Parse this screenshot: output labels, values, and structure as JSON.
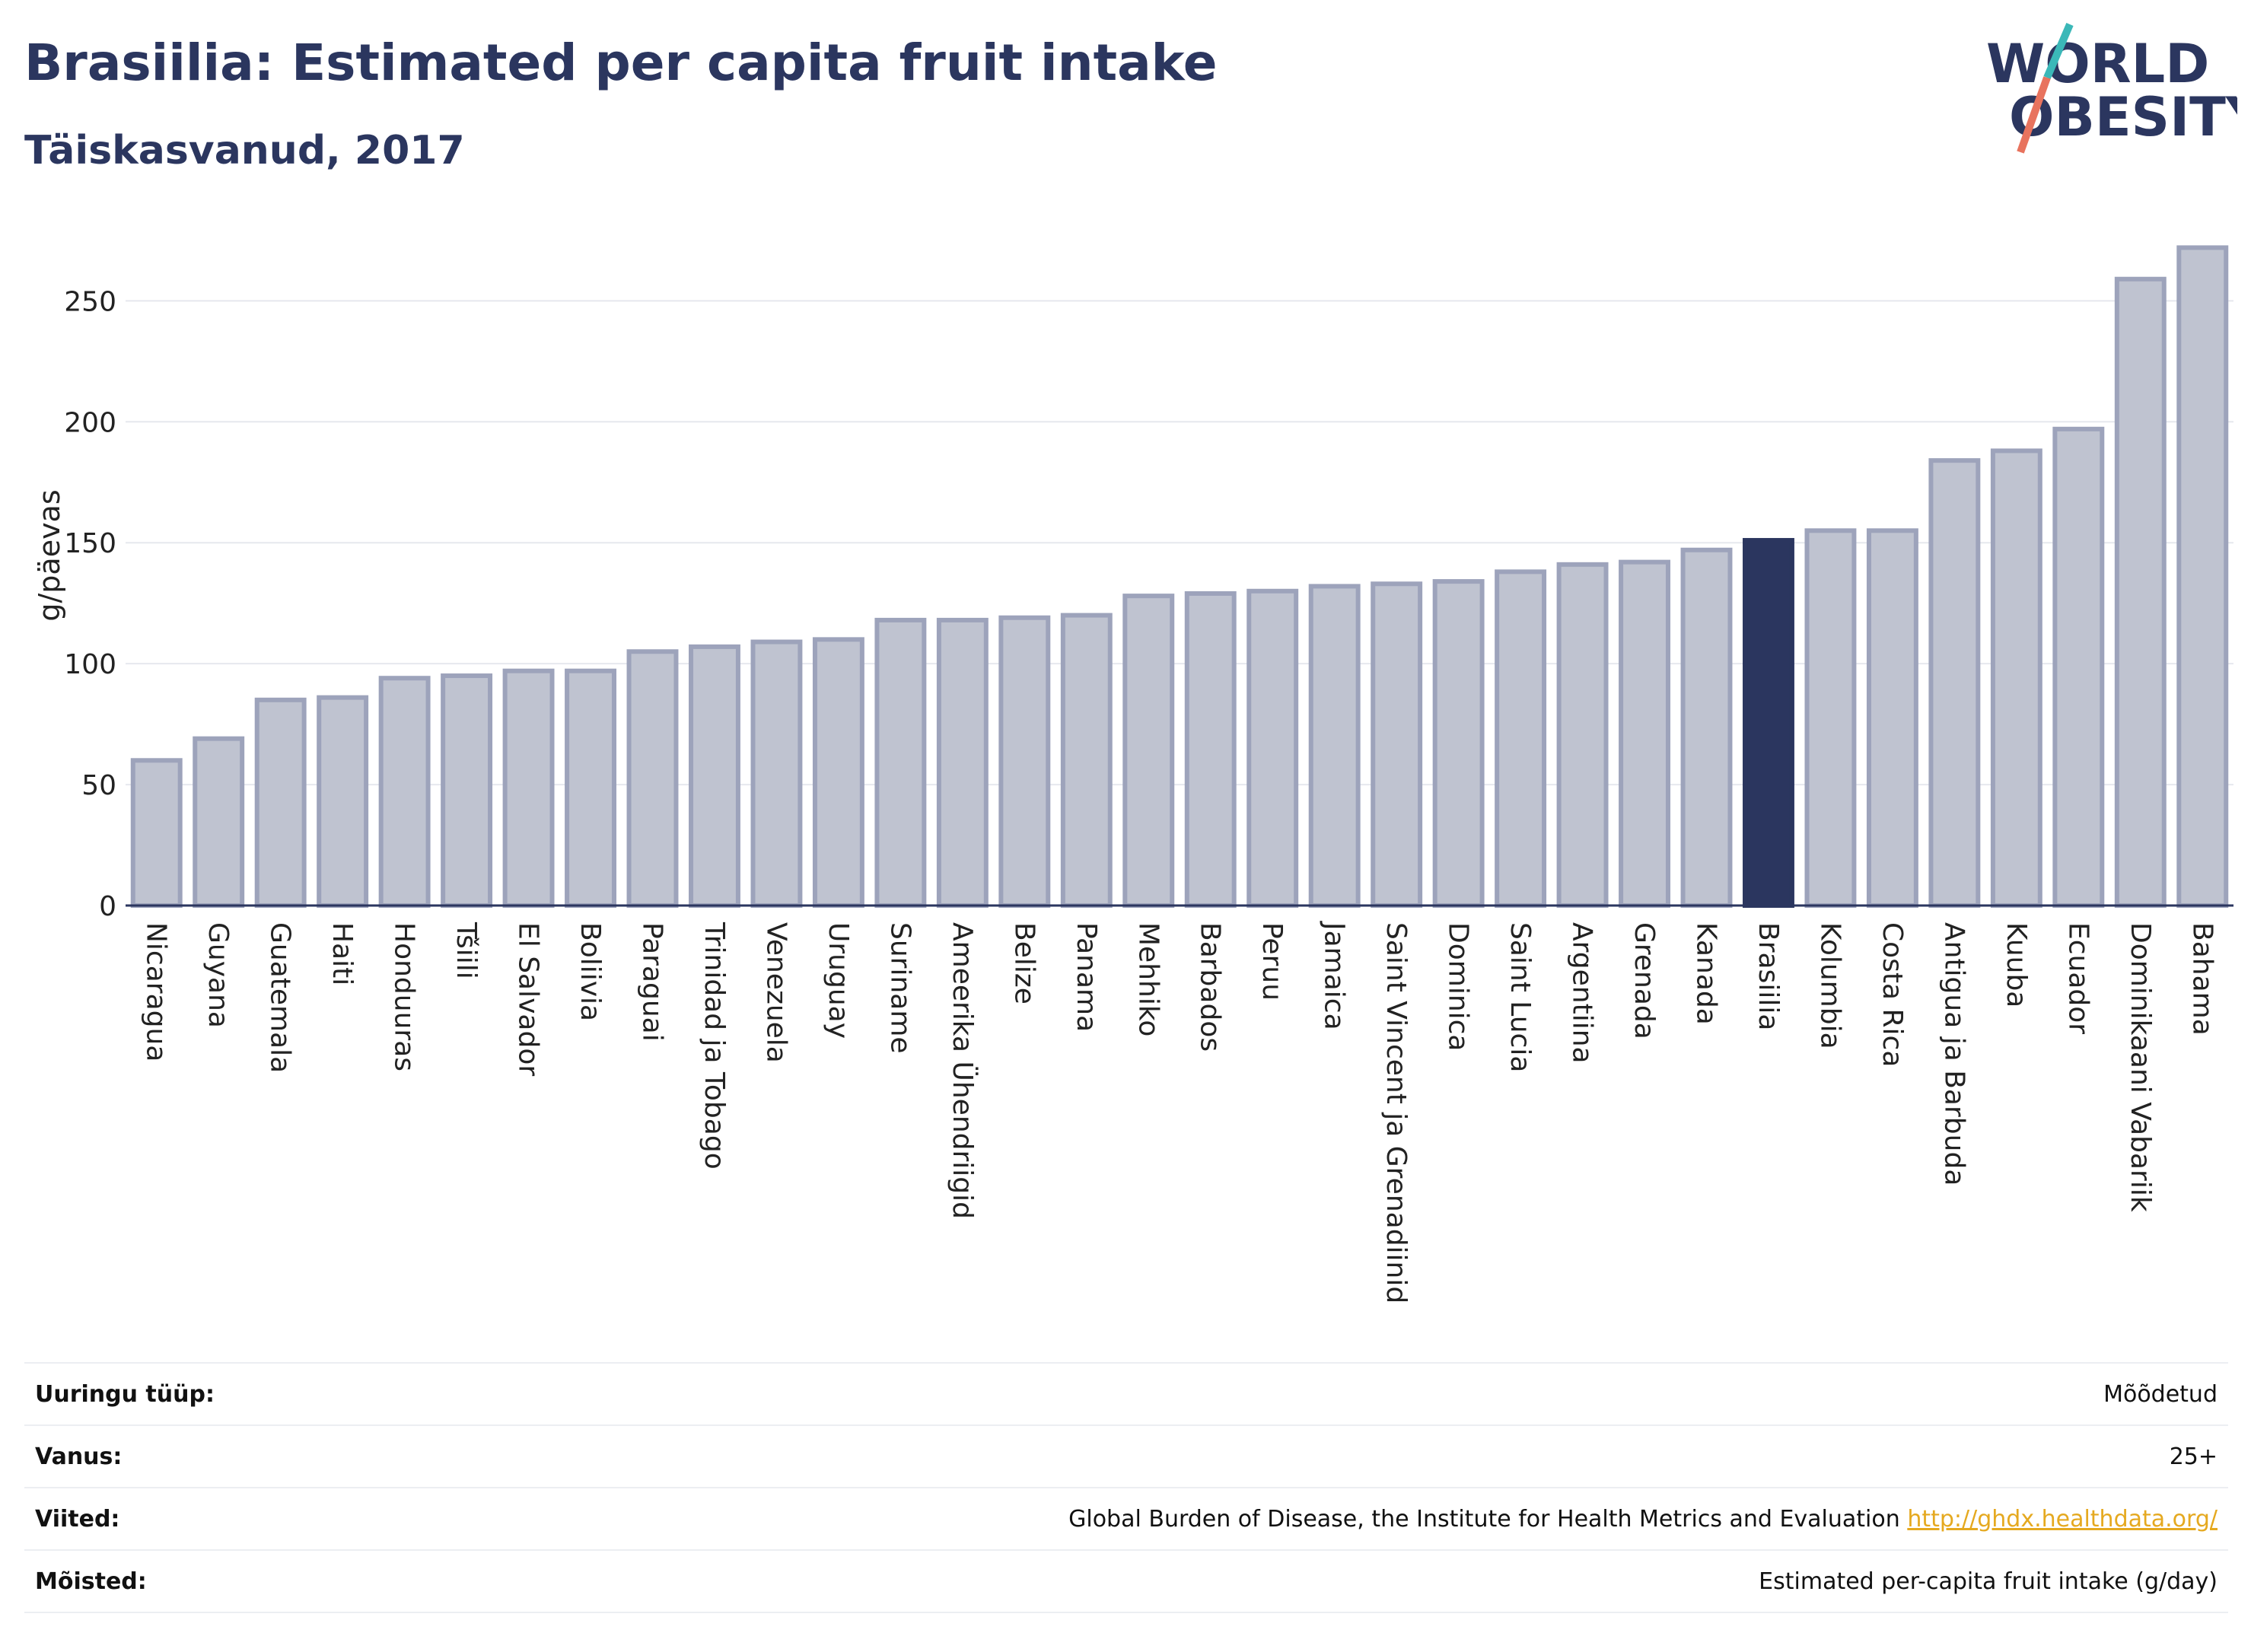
{
  "header": {
    "title": "Brasiilia: Estimated per capita fruit intake",
    "subtitle": "Täiskasvanud, 2017"
  },
  "logo": {
    "line1": "WORLD",
    "line2": "OBESITY"
  },
  "chart_data": {
    "type": "bar",
    "ylabel": "g/päevas",
    "ylim": [
      0,
      280
    ],
    "yticks": [
      0,
      50,
      100,
      150,
      200,
      250
    ],
    "grid": true,
    "highlight": "Brasiilia",
    "colors": {
      "bar": "#bfc3d0",
      "bar_edge": "#9da3bb",
      "highlight": "#2b365f"
    },
    "categories": [
      "Nicaragua",
      "Guyana",
      "Guatemala",
      "Haiti",
      "Honduuras",
      "Tšiili",
      "El Salvador",
      "Boliivia",
      "Paraguai",
      "Trinidad ja Tobago",
      "Venezuela",
      "Uruguay",
      "Suriname",
      "Ameerika Ühendriigid",
      "Belize",
      "Panama",
      "Mehhiko",
      "Barbados",
      "Peruu",
      "Jamaica",
      "Saint Vincent ja Grenadiinid",
      "Dominica",
      "Saint Lucia",
      "Argentiina",
      "Grenada",
      "Kanada",
      "Brasiilia",
      "Kolumbia",
      "Costa Rica",
      "Antigua ja Barbuda",
      "Kuuba",
      "Ecuador",
      "Dominikaani Vabariik",
      "Bahama"
    ],
    "values": [
      60,
      69,
      85,
      86,
      94,
      95,
      97,
      97,
      105,
      107,
      109,
      110,
      118,
      118,
      119,
      120,
      128,
      129,
      130,
      132,
      133,
      134,
      138,
      141,
      142,
      147,
      151,
      155,
      155,
      184,
      188,
      197,
      259,
      272
    ]
  },
  "meta": [
    {
      "key": "Uuringu tüüp:",
      "value": "Mõõdetud"
    },
    {
      "key": "Vanus:",
      "value": "25+"
    },
    {
      "key": "Viited:",
      "value": "Global Burden of Disease, the Institute for Health Metrics and Evaluation",
      "link": "http://ghdx.healthdata.org/"
    },
    {
      "key": "Mõisted:",
      "value": "Estimated per-capita fruit intake (g/day)"
    }
  ]
}
